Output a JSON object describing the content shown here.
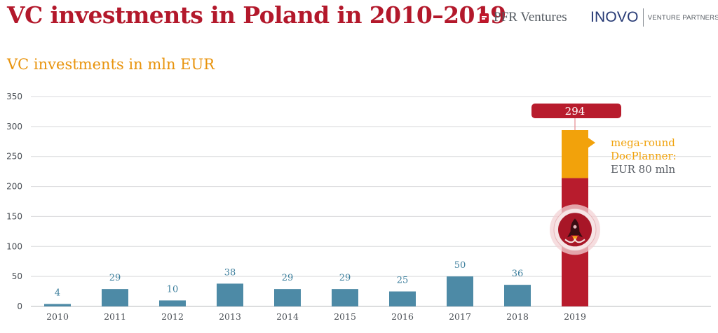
{
  "header": {
    "title": "VC investments in Poland in 2010–2019",
    "brand_pfr": "PFR Ventures",
    "brand_inovo": "INOVO",
    "brand_inovo_sub": "VENTURE PARTNERS"
  },
  "chart_data": {
    "type": "bar",
    "title": "VC investments in Poland in 2010–2019",
    "subtitle": "VC investments in mln EUR",
    "categories": [
      "2010",
      "2011",
      "2012",
      "2013",
      "2014",
      "2015",
      "2016",
      "2017",
      "2018",
      "2019"
    ],
    "values": [
      4,
      29,
      10,
      38,
      29,
      29,
      25,
      50,
      36,
      294
    ],
    "series_2019_breakdown": [
      {
        "name": "",
        "value": 214
      },
      {
        "name": "mega-round DocPlanner",
        "value": 80
      }
    ],
    "ylim": [
      0,
      350
    ],
    "yticks": [
      0,
      50,
      100,
      150,
      200,
      250,
      300,
      350
    ],
    "grid": true,
    "annotations": {
      "total_2019": "294",
      "mega_round_line1": "mega-round",
      "mega_round_line2": "DocPlanner:",
      "mega_round_line3": "EUR 80 mln"
    },
    "colors": {
      "bar": "#4d8aa6",
      "highlight": "#b81c2d",
      "mega_round": "#f2a20b",
      "data_label": "#3d7f9d",
      "grid": "#d9dadc"
    }
  },
  "icons": {
    "pfr_logo": "pfr-logo-icon",
    "rocket": "rocket-icon",
    "pointer": "triangle-pointer-icon"
  }
}
